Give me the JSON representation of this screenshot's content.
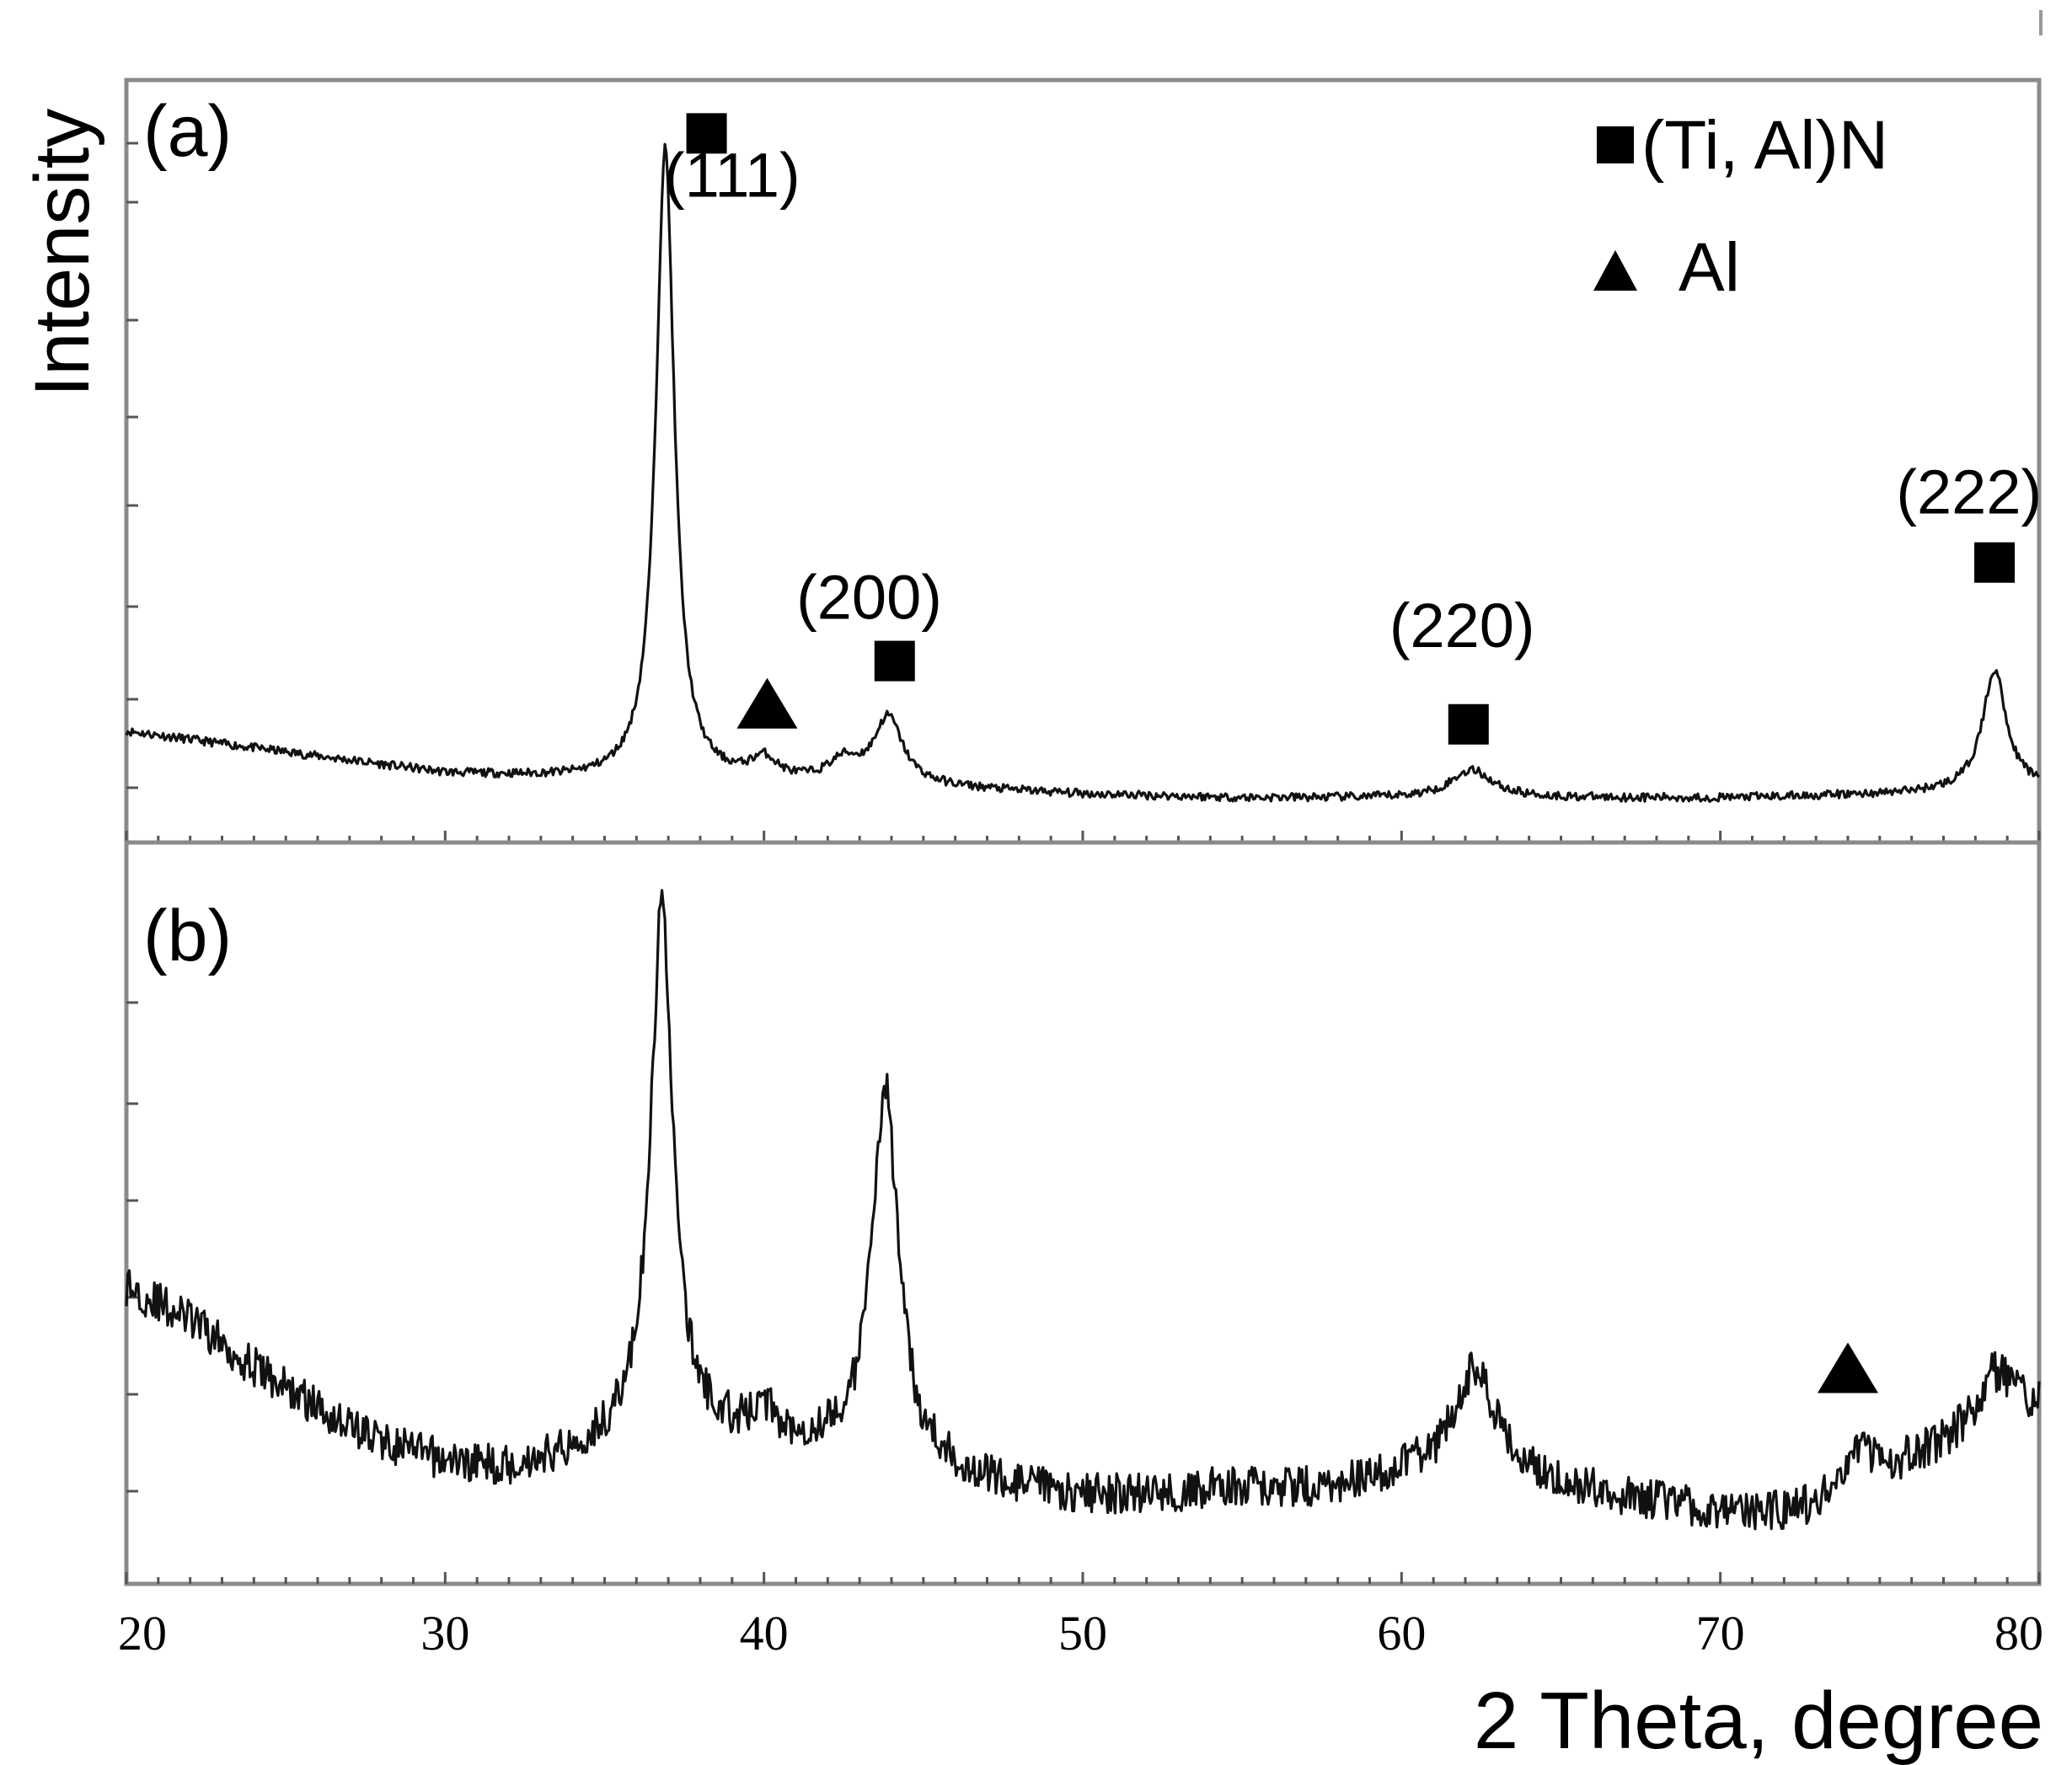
{
  "chart_data": [
    {
      "type": "line",
      "panel_label": "(a)",
      "xlim": [
        20,
        80
      ],
      "grid": false,
      "legend_position": "top-right",
      "legend": [
        {
          "marker": "square",
          "label": "(Ti, Al)N"
        },
        {
          "marker": "triangle",
          "label": "Al"
        }
      ],
      "baseline": [
        [
          20,
          0.14
        ],
        [
          25,
          0.11
        ],
        [
          30,
          0.08
        ],
        [
          35,
          0.07
        ],
        [
          40,
          0.065
        ],
        [
          45,
          0.06
        ],
        [
          50,
          0.05
        ],
        [
          55,
          0.045
        ],
        [
          60,
          0.045
        ],
        [
          65,
          0.045
        ],
        [
          70,
          0.045
        ],
        [
          75,
          0.05
        ],
        [
          80,
          0.06
        ]
      ],
      "peaks": [
        {
          "x": 36.9,
          "height": 0.9,
          "width": 0.35
        },
        {
          "x": 40.0,
          "height": 0.03,
          "width": 0.5
        },
        {
          "x": 42.5,
          "height": 0.03,
          "width": 0.6
        },
        {
          "x": 43.9,
          "height": 0.095,
          "width": 0.55
        },
        {
          "x": 62.2,
          "height": 0.04,
          "width": 0.8
        },
        {
          "x": 78.6,
          "height": 0.17,
          "width": 0.45
        }
      ],
      "noise": 0.006,
      "annotations": [
        {
          "marker": "square",
          "x": 38.2,
          "text": "(111)",
          "text_x": 39.0,
          "text_y": 0.9,
          "marker_y": 0.99
        },
        {
          "marker": "triangle",
          "x": 40.1,
          "marker_y": 0.18
        },
        {
          "marker": "square",
          "x": 44.1,
          "text": "(200)",
          "text_x": 43.3,
          "text_y": 0.3,
          "marker_y": 0.24
        },
        {
          "marker": "square",
          "x": 62.1,
          "text": "(220)",
          "text_x": 61.9,
          "text_y": 0.26,
          "marker_y": 0.15
        },
        {
          "marker": "square",
          "x": 78.6,
          "text": "(222)",
          "text_x": 77.8,
          "text_y": 0.45,
          "marker_y": 0.38
        }
      ]
    },
    {
      "type": "line",
      "panel_label": "(b)",
      "xlim": [
        20,
        80
      ],
      "grid": false,
      "baseline": [
        [
          20,
          0.42
        ],
        [
          22,
          0.37
        ],
        [
          24,
          0.3
        ],
        [
          26,
          0.24
        ],
        [
          28,
          0.19
        ],
        [
          30,
          0.16
        ],
        [
          32,
          0.15
        ],
        [
          34,
          0.17
        ],
        [
          36,
          0.2
        ],
        [
          38,
          0.2
        ],
        [
          40,
          0.19
        ],
        [
          42,
          0.18
        ],
        [
          44,
          0.16
        ],
        [
          46,
          0.14
        ],
        [
          48,
          0.12
        ],
        [
          50,
          0.11
        ],
        [
          52,
          0.11
        ],
        [
          54,
          0.12
        ],
        [
          56,
          0.12
        ],
        [
          58,
          0.12
        ],
        [
          60,
          0.14
        ],
        [
          64,
          0.13
        ],
        [
          68,
          0.1
        ],
        [
          71,
          0.08
        ],
        [
          73,
          0.09
        ],
        [
          76,
          0.16
        ],
        [
          80,
          0.24
        ]
      ],
      "peaks": [
        {
          "x": 36.8,
          "height": 0.78,
          "width": 0.42
        },
        {
          "x": 40.0,
          "height": 0.04,
          "width": 0.4
        },
        {
          "x": 43.8,
          "height": 0.55,
          "width": 0.5
        },
        {
          "x": 62.3,
          "height": 0.16,
          "width": 0.85
        },
        {
          "x": 74.3,
          "height": 0.06,
          "width": 0.6
        },
        {
          "x": 78.6,
          "height": 0.08,
          "width": 0.7
        }
      ],
      "noise": 0.03,
      "annotations": [
        {
          "marker": "triangle",
          "x": 74.0,
          "marker_y": 0.3
        }
      ]
    }
  ],
  "x_ticks": [
    20,
    30,
    40,
    50,
    60,
    70,
    80
  ],
  "x_axis_label": "2 Theta, degree",
  "y_axis_label": "Intensity",
  "colors": {
    "trace": "#111111",
    "axis": "#666666",
    "marker": "#000000"
  }
}
